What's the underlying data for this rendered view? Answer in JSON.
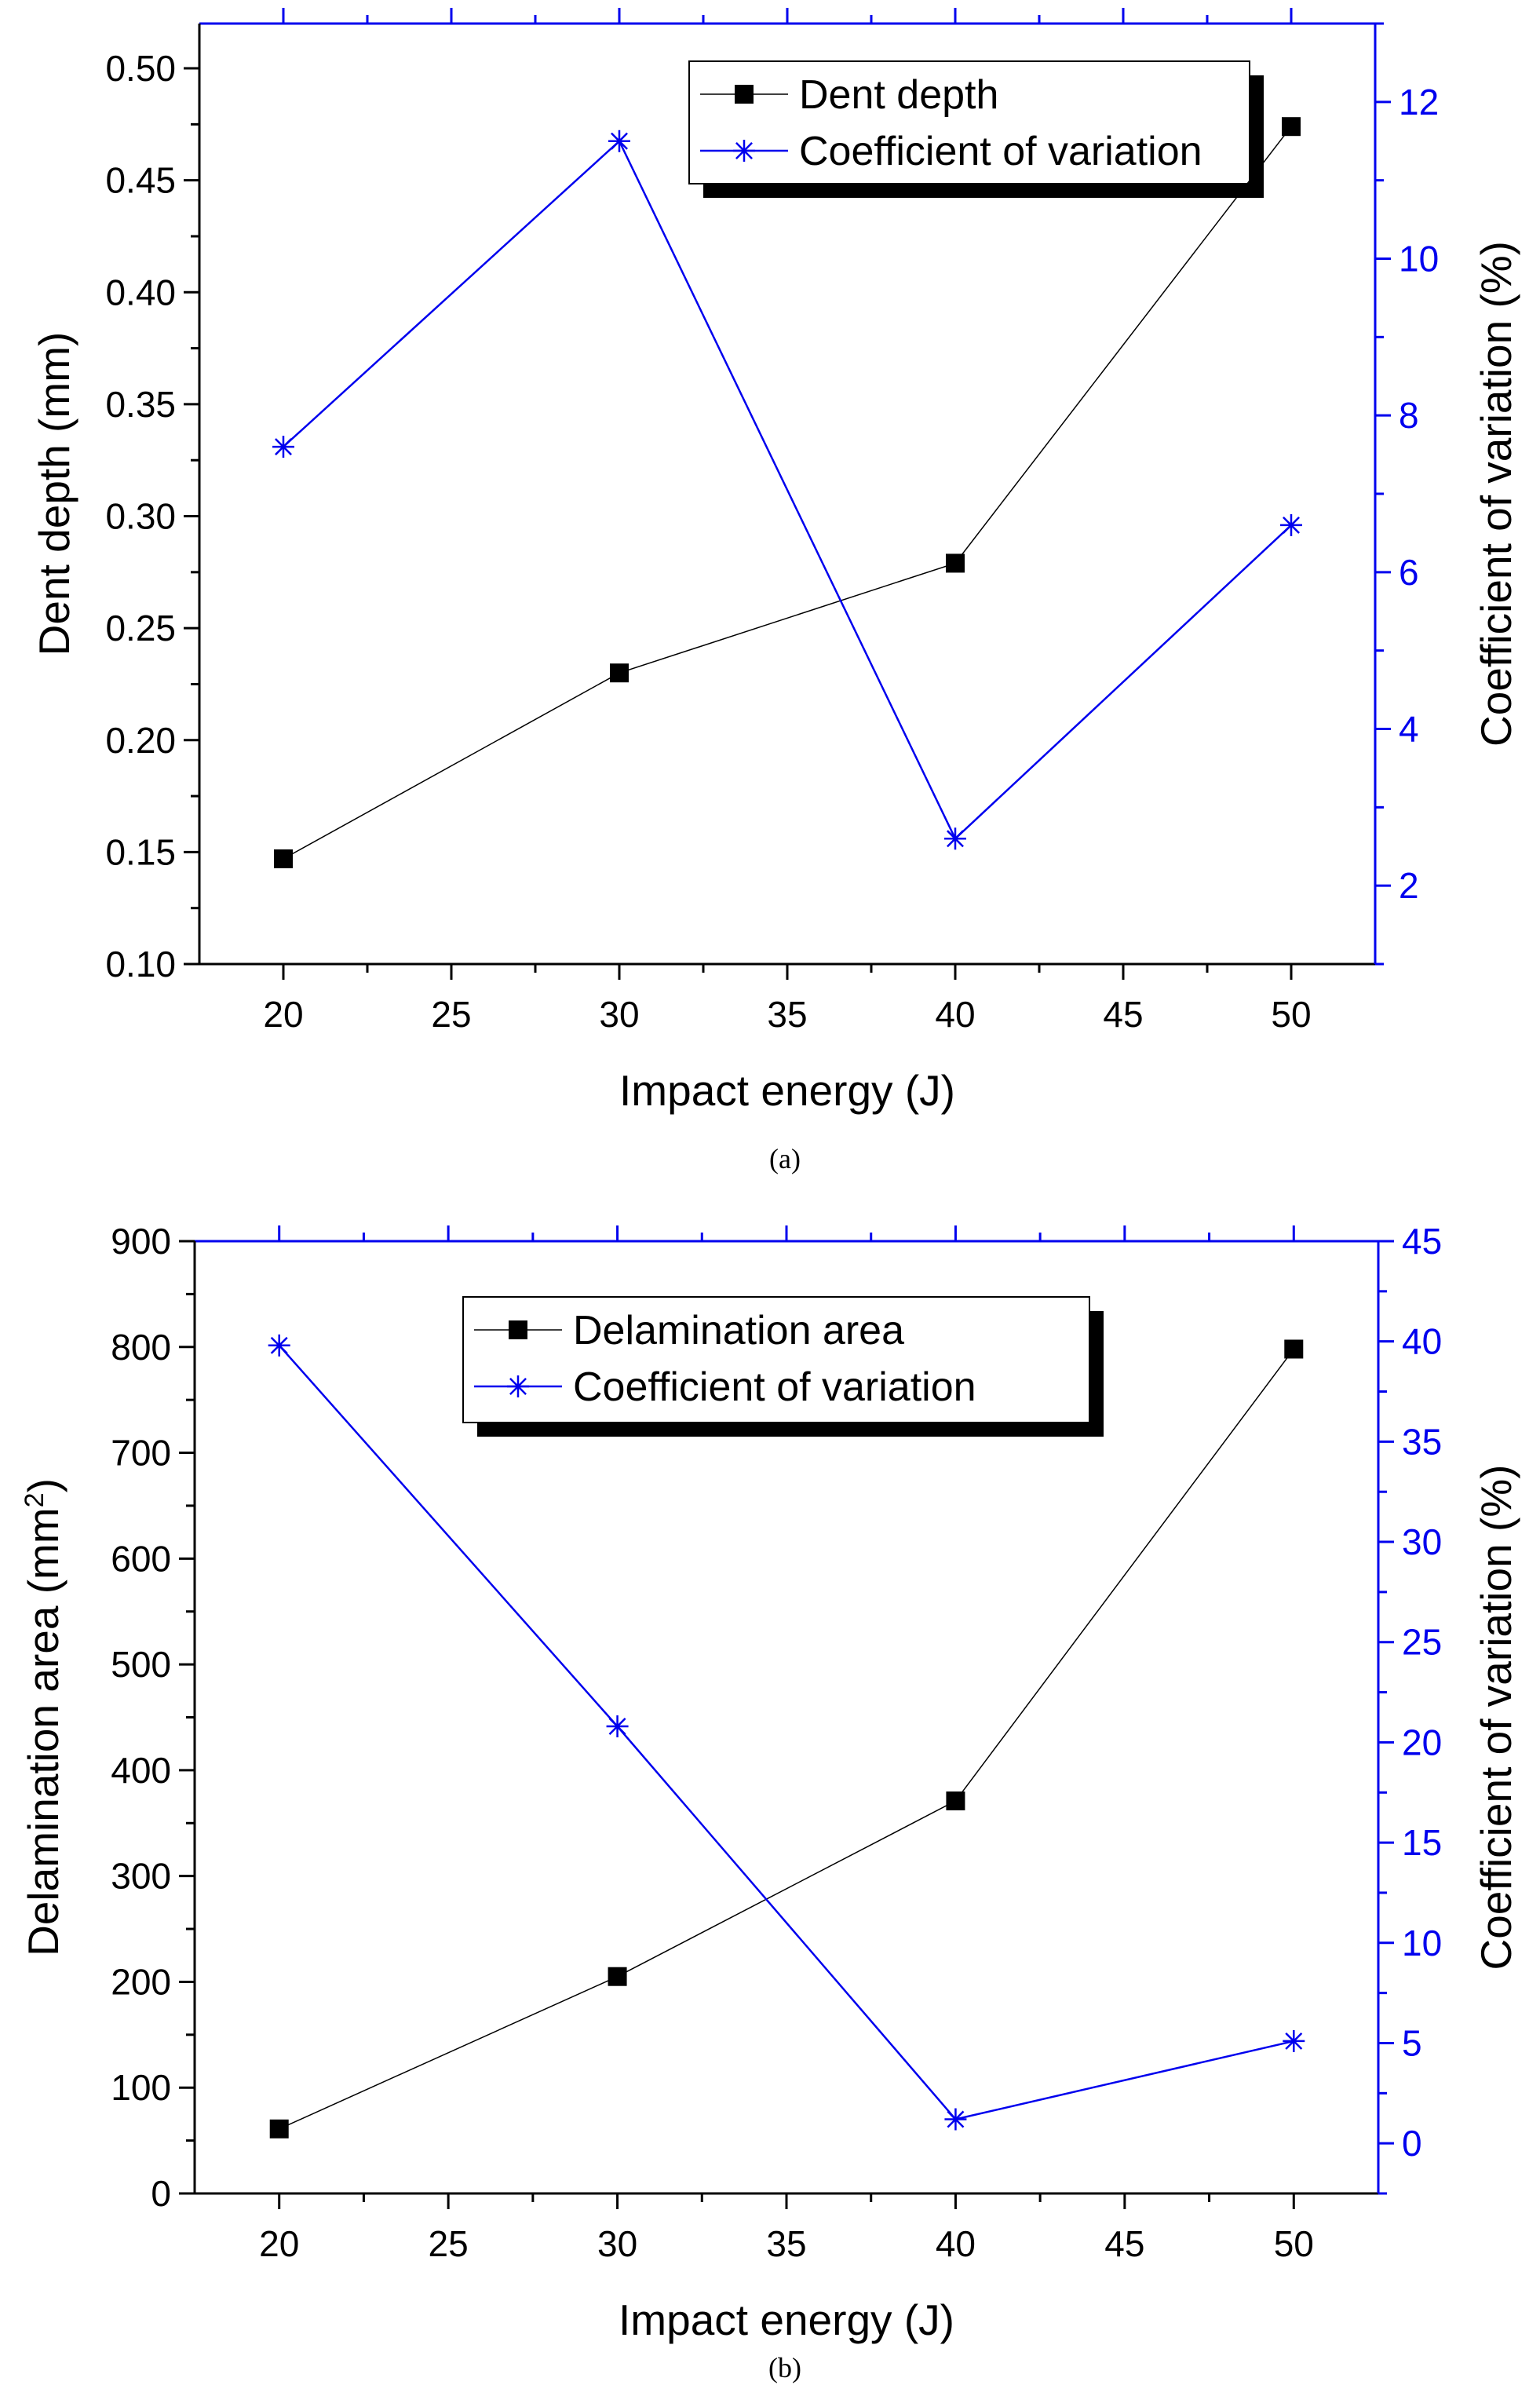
{
  "chart_data": [
    {
      "type": "line",
      "panel_label": "a",
      "title": "",
      "xlabel": "Impact energy (J)",
      "ylabel": "Dent depth (mm)",
      "y2label": "Coefficient of variation (%)",
      "xlim": [
        17.5,
        52.5
      ],
      "ylim": [
        0.1,
        0.52
      ],
      "y2lim": [
        1,
        13
      ],
      "xticks": [
        20,
        25,
        30,
        35,
        40,
        45,
        50
      ],
      "yticks": [
        0.1,
        0.15,
        0.2,
        0.25,
        0.3,
        0.35,
        0.4,
        0.45,
        0.5
      ],
      "yticks_label": [
        "0.10",
        "0.15",
        "0.20",
        "0.25",
        "0.30",
        "0.35",
        "0.40",
        "0.45",
        "0.50"
      ],
      "y2ticks": [
        2,
        4,
        6,
        8,
        10,
        12
      ],
      "legend_position": "top-right",
      "series": [
        {
          "name": "Dent depth",
          "axis": "left",
          "marker": "square",
          "color": "#000000",
          "x": [
            20,
            30,
            40,
            50
          ],
          "values": [
            0.147,
            0.23,
            0.279,
            0.474
          ]
        },
        {
          "name": "Coefficient of variation",
          "axis": "right",
          "marker": "asterisk",
          "color": "#0000ee",
          "x": [
            20,
            30,
            40,
            50
          ],
          "values": [
            7.6,
            11.5,
            2.6,
            6.6
          ]
        }
      ]
    },
    {
      "type": "line",
      "panel_label": "b",
      "title": "",
      "xlabel": "Impact energy (J)",
      "ylabel": "Delamination area (mm",
      "ylabel_sup": "2",
      "ylabel_tail": ")",
      "y2label": "Coefficient of variation (%)",
      "xlim": [
        17.5,
        52.5
      ],
      "ylim": [
        0,
        900
      ],
      "y2lim": [
        -2.5,
        45
      ],
      "xticks": [
        20,
        25,
        30,
        35,
        40,
        45,
        50
      ],
      "yticks": [
        0,
        100,
        200,
        300,
        400,
        500,
        600,
        700,
        800,
        900
      ],
      "yticks_label": [
        "0",
        "100",
        "200",
        "300",
        "400",
        "500",
        "600",
        "700",
        "800",
        "900"
      ],
      "y2ticks": [
        0,
        5,
        10,
        15,
        20,
        25,
        30,
        35,
        40,
        45
      ],
      "legend_position": "top-center",
      "series": [
        {
          "name": "Delamination area",
          "axis": "left",
          "marker": "square",
          "color": "#000000",
          "x": [
            20,
            30,
            40,
            50
          ],
          "values": [
            61,
            205,
            371,
            798
          ]
        },
        {
          "name": "Coefficient of variation",
          "axis": "right",
          "marker": "asterisk",
          "color": "#0000ee",
          "x": [
            20,
            30,
            40,
            50
          ],
          "values": [
            39.8,
            20.8,
            1.2,
            5.1
          ]
        }
      ]
    }
  ],
  "captions": {
    "a": "(a)",
    "b": "(b)"
  }
}
